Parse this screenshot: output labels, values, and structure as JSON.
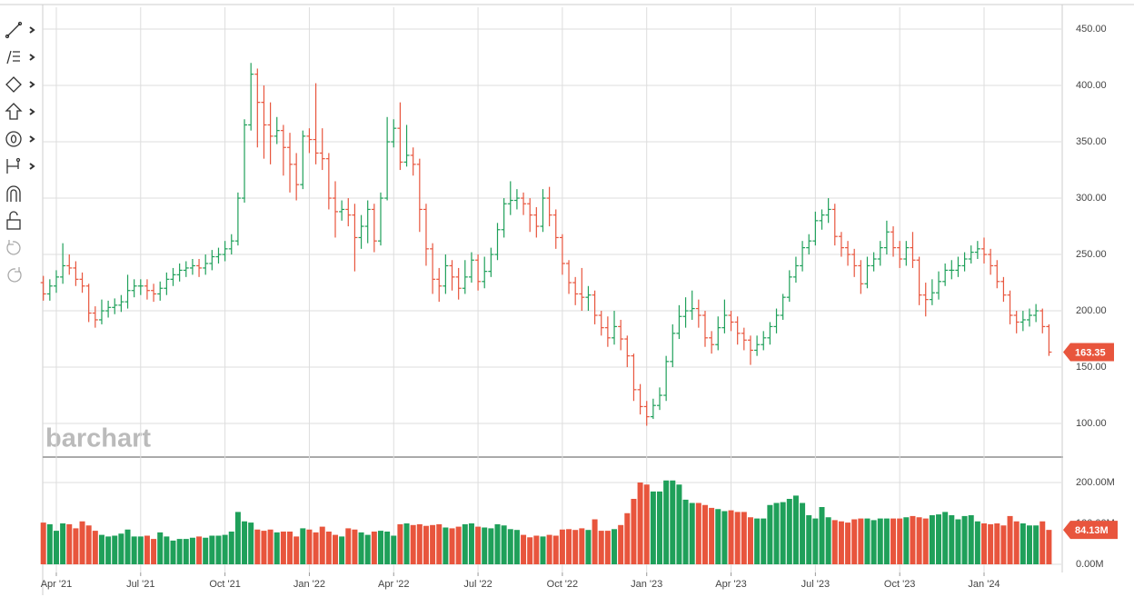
{
  "chart_data": [
    {
      "type": "ohlc",
      "up_color": "#1fa05a",
      "down_color": "#e8553d",
      "watermark": "barchart",
      "ylim": [
        71,
        469.4
      ],
      "grid": true,
      "yticks": [
        {
          "value": 100,
          "label": "100.00"
        },
        {
          "value": 150,
          "label": "150.00"
        },
        {
          "value": 200,
          "label": "200.00"
        },
        {
          "value": 250,
          "label": "250.00"
        },
        {
          "value": 300,
          "label": "300.00"
        },
        {
          "value": 350,
          "label": "350.00"
        },
        {
          "value": 400,
          "label": "400.00"
        },
        {
          "value": 450,
          "label": "450.00"
        }
      ],
      "open": [
        225,
        215,
        222,
        230,
        240,
        238,
        228,
        222,
        198,
        192,
        200,
        203,
        205,
        208,
        218,
        222,
        222,
        218,
        215,
        220,
        228,
        232,
        236,
        238,
        240,
        238,
        242,
        248,
        250,
        255,
        262,
        300,
        365,
        410,
        385,
        365,
        355,
        360,
        345,
        330,
        312,
        355,
        352,
        340,
        335,
        300,
        288,
        290,
        285,
        265,
        275,
        290,
        262,
        300,
        350,
        362,
        332,
        338,
        330,
        290,
        255,
        228,
        222,
        240,
        230,
        220,
        230,
        245,
        226,
        235,
        250,
        272,
        295,
        298,
        300,
        295,
        285,
        275,
        300,
        285,
        265,
        242,
        225,
        215,
        212,
        214,
        196,
        185,
        176,
        186,
        175,
        160,
        130,
        115,
        106,
        116,
        125,
        155,
        180,
        195,
        200,
        202,
        196,
        176,
        170,
        185,
        196,
        190,
        180,
        174,
        165,
        170,
        176,
        186,
        196,
        212,
        230,
        240,
        256,
        262,
        280,
        285,
        290,
        266,
        256,
        250,
        240,
        224,
        240,
        246,
        256,
        270,
        256,
        246,
        256,
        245,
        214,
        210,
        216,
        226,
        236,
        236,
        240,
        246,
        252,
        255,
        250,
        240,
        226,
        214,
        196,
        190,
        192,
        196,
        200,
        186
      ],
      "high": [
        231,
        228,
        236,
        260,
        250,
        244,
        234,
        224,
        204,
        210,
        209,
        211,
        214,
        232,
        228,
        228,
        228,
        224,
        226,
        234,
        238,
        242,
        244,
        246,
        246,
        250,
        254,
        256,
        262,
        268,
        305,
        370,
        420,
        415,
        400,
        385,
        372,
        365,
        358,
        340,
        360,
        362,
        402,
        362,
        340,
        315,
        298,
        300,
        295,
        285,
        298,
        295,
        305,
        372,
        370,
        385,
        365,
        345,
        335,
        295,
        260,
        238,
        250,
        245,
        238,
        245,
        252,
        250,
        248,
        256,
        278,
        300,
        315,
        308,
        305,
        300,
        292,
        308,
        310,
        290,
        268,
        245,
        230,
        238,
        222,
        218,
        200,
        195,
        200,
        192,
        178,
        162,
        135,
        120,
        122,
        132,
        160,
        188,
        205,
        212,
        218,
        210,
        200,
        182,
        195,
        210,
        200,
        195,
        185,
        178,
        178,
        182,
        190,
        202,
        215,
        236,
        248,
        262,
        268,
        288,
        290,
        300,
        295,
        270,
        262,
        255,
        245,
        248,
        252,
        262,
        280,
        275,
        262,
        262,
        270,
        248,
        225,
        228,
        235,
        242,
        245,
        248,
        252,
        258,
        262,
        265,
        255,
        245,
        230,
        218,
        200,
        200,
        202,
        206,
        202,
        188
      ],
      "low": [
        209,
        209,
        216,
        224,
        232,
        222,
        216,
        190,
        185,
        188,
        194,
        197,
        199,
        202,
        212,
        214,
        210,
        208,
        209,
        214,
        222,
        226,
        230,
        232,
        230,
        232,
        236,
        242,
        244,
        250,
        258,
        296,
        360,
        345,
        335,
        330,
        348,
        320,
        305,
        298,
        308,
        340,
        330,
        325,
        290,
        265,
        280,
        275,
        235,
        255,
        260,
        252,
        258,
        298,
        345,
        325,
        328,
        320,
        270,
        240,
        215,
        208,
        215,
        218,
        210,
        215,
        225,
        218,
        220,
        230,
        245,
        265,
        285,
        290,
        285,
        270,
        265,
        270,
        275,
        255,
        232,
        215,
        205,
        200,
        200,
        188,
        178,
        168,
        170,
        165,
        150,
        120,
        108,
        98,
        104,
        112,
        120,
        150,
        175,
        185,
        192,
        185,
        168,
        162,
        165,
        180,
        182,
        170,
        165,
        152,
        160,
        165,
        170,
        180,
        192,
        208,
        225,
        235,
        250,
        258,
        272,
        278,
        258,
        248,
        240,
        230,
        215,
        220,
        235,
        240,
        250,
        248,
        238,
        240,
        238,
        205,
        195,
        205,
        210,
        222,
        228,
        230,
        235,
        242,
        246,
        242,
        232,
        220,
        208,
        188,
        180,
        182,
        186,
        190,
        180,
        160
      ],
      "close": [
        215,
        222,
        230,
        240,
        238,
        228,
        222,
        198,
        192,
        200,
        203,
        205,
        208,
        218,
        222,
        222,
        218,
        215,
        220,
        228,
        232,
        236,
        238,
        240,
        238,
        242,
        248,
        250,
        255,
        262,
        300,
        365,
        410,
        385,
        365,
        355,
        360,
        345,
        330,
        312,
        355,
        352,
        340,
        335,
        300,
        288,
        290,
        285,
        265,
        275,
        290,
        262,
        300,
        350,
        362,
        332,
        338,
        330,
        290,
        255,
        228,
        222,
        240,
        230,
        220,
        230,
        245,
        226,
        235,
        250,
        272,
        295,
        298,
        300,
        295,
        285,
        275,
        300,
        285,
        265,
        242,
        225,
        215,
        212,
        214,
        196,
        185,
        176,
        186,
        175,
        160,
        130,
        115,
        106,
        116,
        125,
        155,
        180,
        195,
        200,
        202,
        196,
        176,
        170,
        185,
        196,
        190,
        180,
        174,
        165,
        170,
        176,
        186,
        196,
        212,
        230,
        240,
        256,
        262,
        280,
        285,
        290,
        266,
        256,
        250,
        240,
        224,
        240,
        246,
        256,
        270,
        256,
        246,
        256,
        245,
        214,
        210,
        216,
        226,
        236,
        236,
        240,
        246,
        252,
        255,
        250,
        240,
        226,
        214,
        196,
        190,
        192,
        196,
        200,
        186,
        163.35
      ]
    },
    {
      "type": "bar",
      "ylim": [
        -20,
        260
      ],
      "last_label": "84.13M",
      "yticks": [
        {
          "value": 0,
          "label": "0.00M"
        },
        {
          "value": 100,
          "label": "100.00M"
        },
        {
          "value": 200,
          "label": "200.00M"
        }
      ],
      "categories": [
        null,
        null,
        "Apr '21",
        null,
        null,
        null,
        null,
        null,
        null,
        null,
        null,
        null,
        null,
        null,
        null,
        "Jul '21",
        null,
        null,
        null,
        null,
        null,
        null,
        null,
        null,
        null,
        null,
        null,
        null,
        "Oct '21",
        null,
        null,
        null,
        null,
        null,
        null,
        null,
        null,
        null,
        null,
        null,
        null,
        "Jan '22",
        null,
        null,
        null,
        null,
        null,
        null,
        null,
        null,
        null,
        null,
        null,
        null,
        "Apr '22",
        null,
        null,
        null,
        null,
        null,
        null,
        null,
        null,
        null,
        null,
        null,
        null,
        "Jul '22",
        null,
        null,
        null,
        null,
        null,
        null,
        null,
        null,
        null,
        null,
        null,
        null,
        "Oct '22",
        null,
        null,
        null,
        null,
        null,
        null,
        null,
        null,
        null,
        null,
        null,
        null,
        "Jan '23",
        null,
        null,
        null,
        null,
        null,
        null,
        null,
        null,
        null,
        null,
        null,
        null,
        "Apr '23",
        null,
        null,
        null,
        null,
        null,
        null,
        null,
        null,
        null,
        null,
        null,
        null,
        "Jul '23",
        null,
        null,
        null,
        null,
        null,
        null,
        null,
        null,
        null,
        null,
        null,
        null,
        "Oct '23",
        null,
        null,
        null,
        null,
        null,
        null,
        null,
        null,
        null,
        null,
        null,
        null,
        "Jan '24",
        null,
        null,
        null,
        null,
        null,
        null,
        null,
        null,
        null,
        null
      ],
      "values": [
        102,
        98,
        82,
        100,
        98,
        88,
        105,
        95,
        82,
        72,
        68,
        70,
        75,
        85,
        68,
        68,
        70,
        62,
        78,
        68,
        58,
        62,
        62,
        65,
        68,
        65,
        70,
        70,
        72,
        80,
        128,
        105,
        102,
        85,
        82,
        85,
        78,
        80,
        80,
        68,
        88,
        85,
        78,
        92,
        80,
        72,
        68,
        88,
        85,
        78,
        72,
        80,
        82,
        80,
        70,
        98,
        100,
        96,
        98,
        94,
        96,
        98,
        90,
        88,
        92,
        98,
        100,
        92,
        90,
        88,
        98,
        95,
        86,
        84,
        72,
        66,
        70,
        68,
        72,
        70,
        85,
        86,
        84,
        88,
        84,
        110,
        82,
        82,
        86,
        96,
        125,
        160,
        200,
        195,
        178,
        178,
        205,
        205,
        195,
        158,
        150,
        150,
        145,
        138,
        135,
        130,
        132,
        128,
        128,
        115,
        112,
        112,
        145,
        150,
        152,
        160,
        168,
        150,
        120,
        112,
        140,
        115,
        108,
        105,
        102,
        110,
        112,
        112,
        108,
        112,
        112,
        112,
        112,
        115,
        118,
        115,
        112,
        120,
        122,
        128,
        120,
        110,
        118,
        120,
        105,
        100,
        98,
        100,
        95,
        118,
        105,
        100,
        95,
        95,
        105,
        84.13
      ]
    }
  ]
}
